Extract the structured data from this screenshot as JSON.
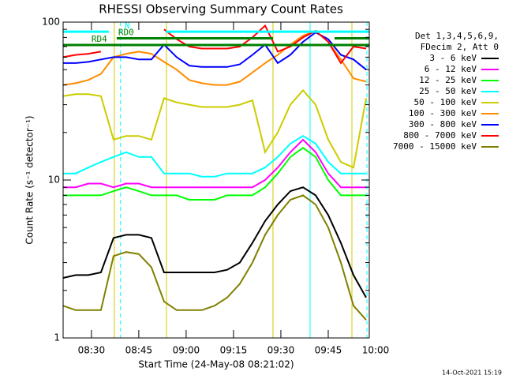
{
  "chart_data": {
    "type": "line",
    "title": "RHESSI Observing Summary Count Rates",
    "xlabel": "Start Time (24-May-08 08:21:02)",
    "ylabel": "Count Rate (s⁻¹ detector⁻¹)",
    "footer": "14-Oct-2021 15:19",
    "legend_title": [
      "Det 1,3,4,5,6,9,",
      "FDecim 2, Att 0"
    ],
    "legend": "right",
    "log_y": true,
    "xlim": [
      501.033,
      598
    ],
    "ylim": [
      1,
      100
    ],
    "xticks": [
      {
        "value": 510,
        "label": "08:30"
      },
      {
        "value": 525,
        "label": "08:45"
      },
      {
        "value": 540,
        "label": "09:00"
      },
      {
        "value": 555,
        "label": "09:15"
      },
      {
        "value": 570,
        "label": "09:30"
      },
      {
        "value": 585,
        "label": "09:45"
      },
      {
        "value": 600,
        "label": "10:00"
      }
    ],
    "yticks": [
      1,
      10,
      100
    ],
    "yminor_ticks": [
      2,
      3,
      4,
      5,
      6,
      7,
      8,
      9,
      20,
      30,
      40,
      50,
      60,
      70,
      80,
      90
    ],
    "x": [
      501,
      505,
      509,
      513,
      517,
      521,
      525,
      529,
      533,
      537,
      541,
      545,
      549,
      553,
      557,
      561,
      565,
      569,
      573,
      577,
      581,
      585,
      589,
      593,
      597
    ],
    "series": [
      {
        "name": "3 - 6 keV",
        "color": "#000000",
        "values": [
          2.4,
          2.5,
          2.5,
          2.6,
          4.3,
          4.5,
          4.5,
          4.3,
          2.6,
          2.6,
          2.6,
          2.6,
          2.6,
          2.7,
          3,
          4,
          5.5,
          7,
          8.5,
          9,
          8,
          6,
          4,
          2.5,
          1.8
        ]
      },
      {
        "name": "6 - 12 keV",
        "color": "#ff00ff",
        "values": [
          9,
          9,
          9.5,
          9.5,
          9,
          9.5,
          9.5,
          9,
          9,
          9,
          9,
          9,
          9,
          9,
          9,
          9,
          10,
          12,
          15,
          18,
          15,
          11,
          9,
          9,
          9
        ]
      },
      {
        "name": "12 - 25 keV",
        "color": "#00ff00",
        "values": [
          8,
          8,
          8,
          8,
          8.5,
          9,
          8.5,
          8,
          8,
          8,
          7.5,
          7.5,
          7.5,
          8,
          8,
          8,
          9,
          11,
          14,
          16,
          14,
          10,
          8,
          8,
          8
        ]
      },
      {
        "name": "25 - 50 keV",
        "color": "#00ffff",
        "values": [
          11,
          11,
          12,
          13,
          14,
          15,
          14,
          14,
          11,
          11,
          11,
          10.5,
          10.5,
          11,
          11,
          11,
          12,
          14,
          17,
          19,
          17,
          13,
          11,
          11,
          11
        ]
      },
      {
        "name": "50 - 100 keV",
        "color": "#cccc00",
        "values": [
          34,
          35,
          35,
          34,
          18,
          19,
          19,
          18,
          33,
          31,
          30,
          29,
          29,
          29,
          30,
          32,
          15,
          20,
          30,
          37,
          30,
          18,
          13,
          12,
          33
        ]
      },
      {
        "name": "100 - 300 keV",
        "color": "#ff8c00",
        "values": [
          40,
          41,
          43,
          47,
          60,
          63,
          65,
          63,
          56,
          50,
          43,
          41,
          40,
          40,
          42,
          48,
          55,
          62,
          72,
          82,
          88,
          75,
          58,
          44,
          42
        ]
      },
      {
        "name": "300 - 800 keV",
        "color": "#0000ff",
        "values": [
          55,
          55,
          56,
          58,
          60,
          60,
          58,
          58,
          72,
          60,
          53,
          52,
          52,
          52,
          54,
          62,
          72,
          55,
          62,
          75,
          86,
          78,
          62,
          58,
          50
        ]
      },
      {
        "name": "800 - 7000 keV",
        "color": "#ff0000",
        "values": [
          60,
          62,
          63,
          65,
          null,
          null,
          null,
          null,
          90,
          78,
          70,
          68,
          68,
          68,
          70,
          80,
          95,
          65,
          70,
          80,
          88,
          75,
          55,
          70,
          68
        ]
      },
      {
        "name": "7000 - 15000 keV",
        "color": "#808000",
        "values": [
          1.6,
          1.5,
          1.5,
          1.5,
          3.3,
          3.5,
          3.4,
          2.8,
          1.7,
          1.5,
          1.5,
          1.5,
          1.6,
          1.8,
          2.2,
          3,
          4.5,
          6,
          7.5,
          8,
          7,
          5,
          3,
          1.6,
          1.3
        ]
      }
    ],
    "vlines": [
      {
        "x": 517.25,
        "color": "#cccc00",
        "dashed": false
      },
      {
        "x": 519.2,
        "color": "#00ffff",
        "dashed": true
      },
      {
        "x": 533.75,
        "color": "#cccc00",
        "dashed": false
      },
      {
        "x": 567.5,
        "color": "#cccc00",
        "dashed": false
      },
      {
        "x": 579.25,
        "color": "#00ffff",
        "dashed": false
      },
      {
        "x": 592.5,
        "color": "#cccc00",
        "dashed": false
      },
      {
        "x": 597.25,
        "color": "#00ffff",
        "dashed": true
      }
    ],
    "flag_bars": [
      {
        "label": "N",
        "color": "#00ffff",
        "level": 87,
        "label_x": 520.5,
        "segments": [
          [
            501.033,
            515.5
          ],
          [
            533.5,
            598
          ]
        ]
      },
      {
        "label": "RD0",
        "color": "#008000",
        "level": 79,
        "label_x": 518.5,
        "segments": [
          [
            518,
            567.5
          ],
          [
            587,
            598
          ]
        ]
      },
      {
        "label": "RD4",
        "color": "#008000",
        "level": 71.6,
        "label_x": 510,
        "segments": [
          [
            501.033,
            598
          ]
        ]
      }
    ]
  }
}
